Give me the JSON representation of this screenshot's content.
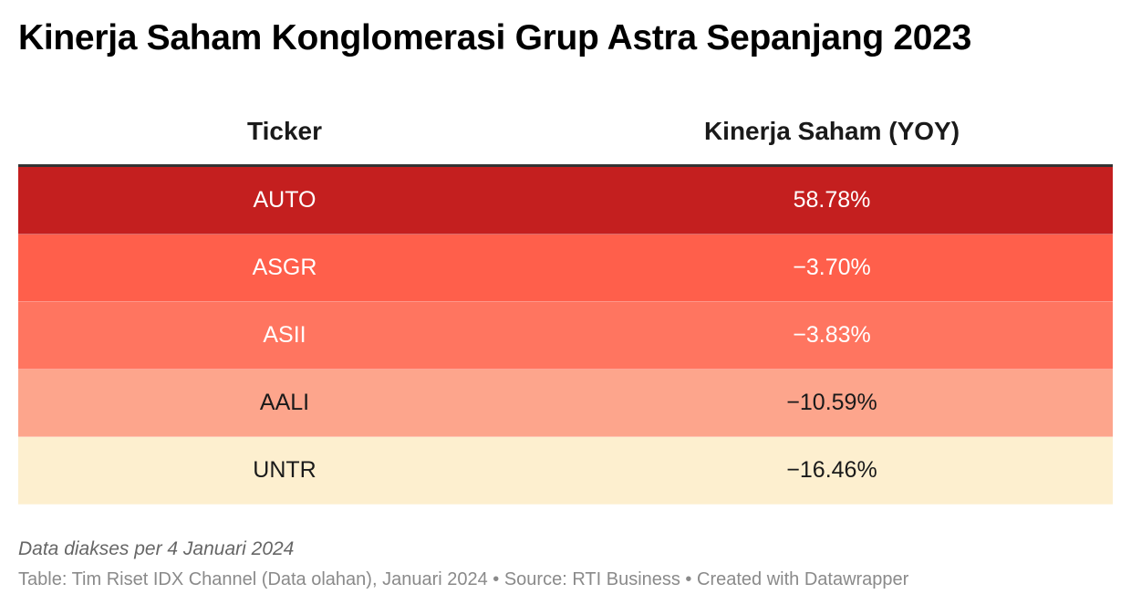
{
  "title": "Kinerja Saham Konglomerasi Grup Astra Sepanjang 2023",
  "colors": {
    "row_auto": "#c41f1f",
    "row_asgr": "#ff5f4b",
    "row_asii": "#ff7560",
    "row_aali": "#fda58c",
    "row_untr": "#fdefcf",
    "text_light": "#ffffff",
    "text_dark": "#1a1a1a"
  },
  "chart_data": {
    "type": "table",
    "title": "Kinerja Saham Konglomerasi Grup Astra Sepanjang 2023",
    "columns": [
      "Ticker",
      "Kinerja Saham (YOY)"
    ],
    "rows": [
      {
        "ticker": "AUTO",
        "performance": "58.78%",
        "value": 58.78,
        "bg": "#c41f1f",
        "fg": "#ffffff"
      },
      {
        "ticker": "ASGR",
        "performance": "−3.70%",
        "value": -3.7,
        "bg": "#ff5f4b",
        "fg": "#ffffff"
      },
      {
        "ticker": "ASII",
        "performance": "−3.83%",
        "value": -3.83,
        "bg": "#ff7560",
        "fg": "#ffffff"
      },
      {
        "ticker": "AALI",
        "performance": "−10.59%",
        "value": -10.59,
        "bg": "#fda58c",
        "fg": "#1a1a1a"
      },
      {
        "ticker": "UNTR",
        "performance": "−16.46%",
        "value": -16.46,
        "bg": "#fdefcf",
        "fg": "#1a1a1a"
      }
    ]
  },
  "notes": {
    "access_date": "Data diakses per 4 Januari 2024",
    "source_line": "Table: Tim Riset IDX Channel (Data olahan), Januari 2024 • Source: RTI Business • Created with Datawrapper"
  }
}
